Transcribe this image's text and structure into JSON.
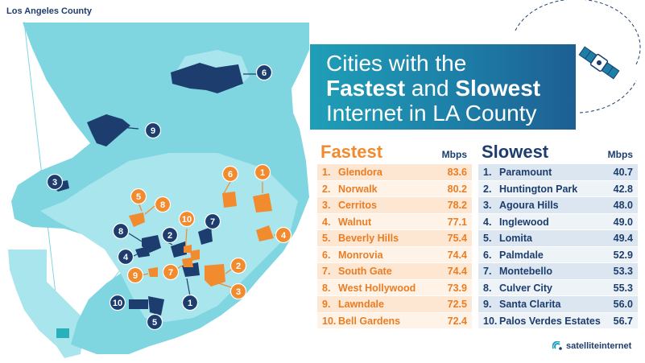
{
  "map": {
    "caption": "Los Angeles County",
    "colors": {
      "county": "#7fd6e0",
      "land_light": "#a9e5ec",
      "fastest": "#f28a2e",
      "slowest": "#1c3d6e"
    },
    "fastest_markers": [
      "1",
      "2",
      "3",
      "4",
      "5",
      "6",
      "7",
      "8",
      "9",
      "10"
    ],
    "slowest_markers": [
      "1",
      "2",
      "3",
      "4",
      "5",
      "6",
      "7",
      "8",
      "9",
      "10"
    ]
  },
  "title": {
    "line1": "Cities with the",
    "line2_bold1": "Fastest",
    "line2_mid": " and ",
    "line2_bold2": "Slowest",
    "line3": "Internet in LA County"
  },
  "fastest": {
    "heading": "Fastest",
    "unit": "Mbps",
    "rows": [
      {
        "rank": "1.",
        "city": "Glendora",
        "speed": "83.6"
      },
      {
        "rank": "2.",
        "city": "Norwalk",
        "speed": "80.2"
      },
      {
        "rank": "3.",
        "city": "Cerritos",
        "speed": "78.2"
      },
      {
        "rank": "4.",
        "city": "Walnut",
        "speed": "77.1"
      },
      {
        "rank": "5.",
        "city": "Beverly Hills",
        "speed": "75.4"
      },
      {
        "rank": "6.",
        "city": "Monrovia",
        "speed": "74.4"
      },
      {
        "rank": "7.",
        "city": "South Gate",
        "speed": "74.4"
      },
      {
        "rank": "8.",
        "city": "West Hollywood",
        "speed": "73.9"
      },
      {
        "rank": "9.",
        "city": "Lawndale",
        "speed": "72.5"
      },
      {
        "rank": "10.",
        "city": "Bell Gardens",
        "speed": "72.4"
      }
    ]
  },
  "slowest": {
    "heading": "Slowest",
    "unit": "Mbps",
    "rows": [
      {
        "rank": "1.",
        "city": "Paramount",
        "speed": "40.7"
      },
      {
        "rank": "2.",
        "city": "Huntington Park",
        "speed": "42.8"
      },
      {
        "rank": "3.",
        "city": "Agoura Hills",
        "speed": "48.0"
      },
      {
        "rank": "4.",
        "city": "Inglewood",
        "speed": "49.0"
      },
      {
        "rank": "5.",
        "city": "Lomita",
        "speed": "49.4"
      },
      {
        "rank": "6.",
        "city": "Palmdale",
        "speed": "52.9"
      },
      {
        "rank": "7.",
        "city": "Montebello",
        "speed": "53.3"
      },
      {
        "rank": "8.",
        "city": "Culver City",
        "speed": "55.3"
      },
      {
        "rank": "9.",
        "city": "Santa Clarita",
        "speed": "56.0"
      },
      {
        "rank": "10.",
        "city": "Palos Verdes Estates",
        "speed": "56.7"
      }
    ]
  },
  "brand": {
    "icon": "satellite-dish-icon",
    "label": "satelliteinternet"
  },
  "decoration": {
    "icon": "satellite-icon"
  }
}
